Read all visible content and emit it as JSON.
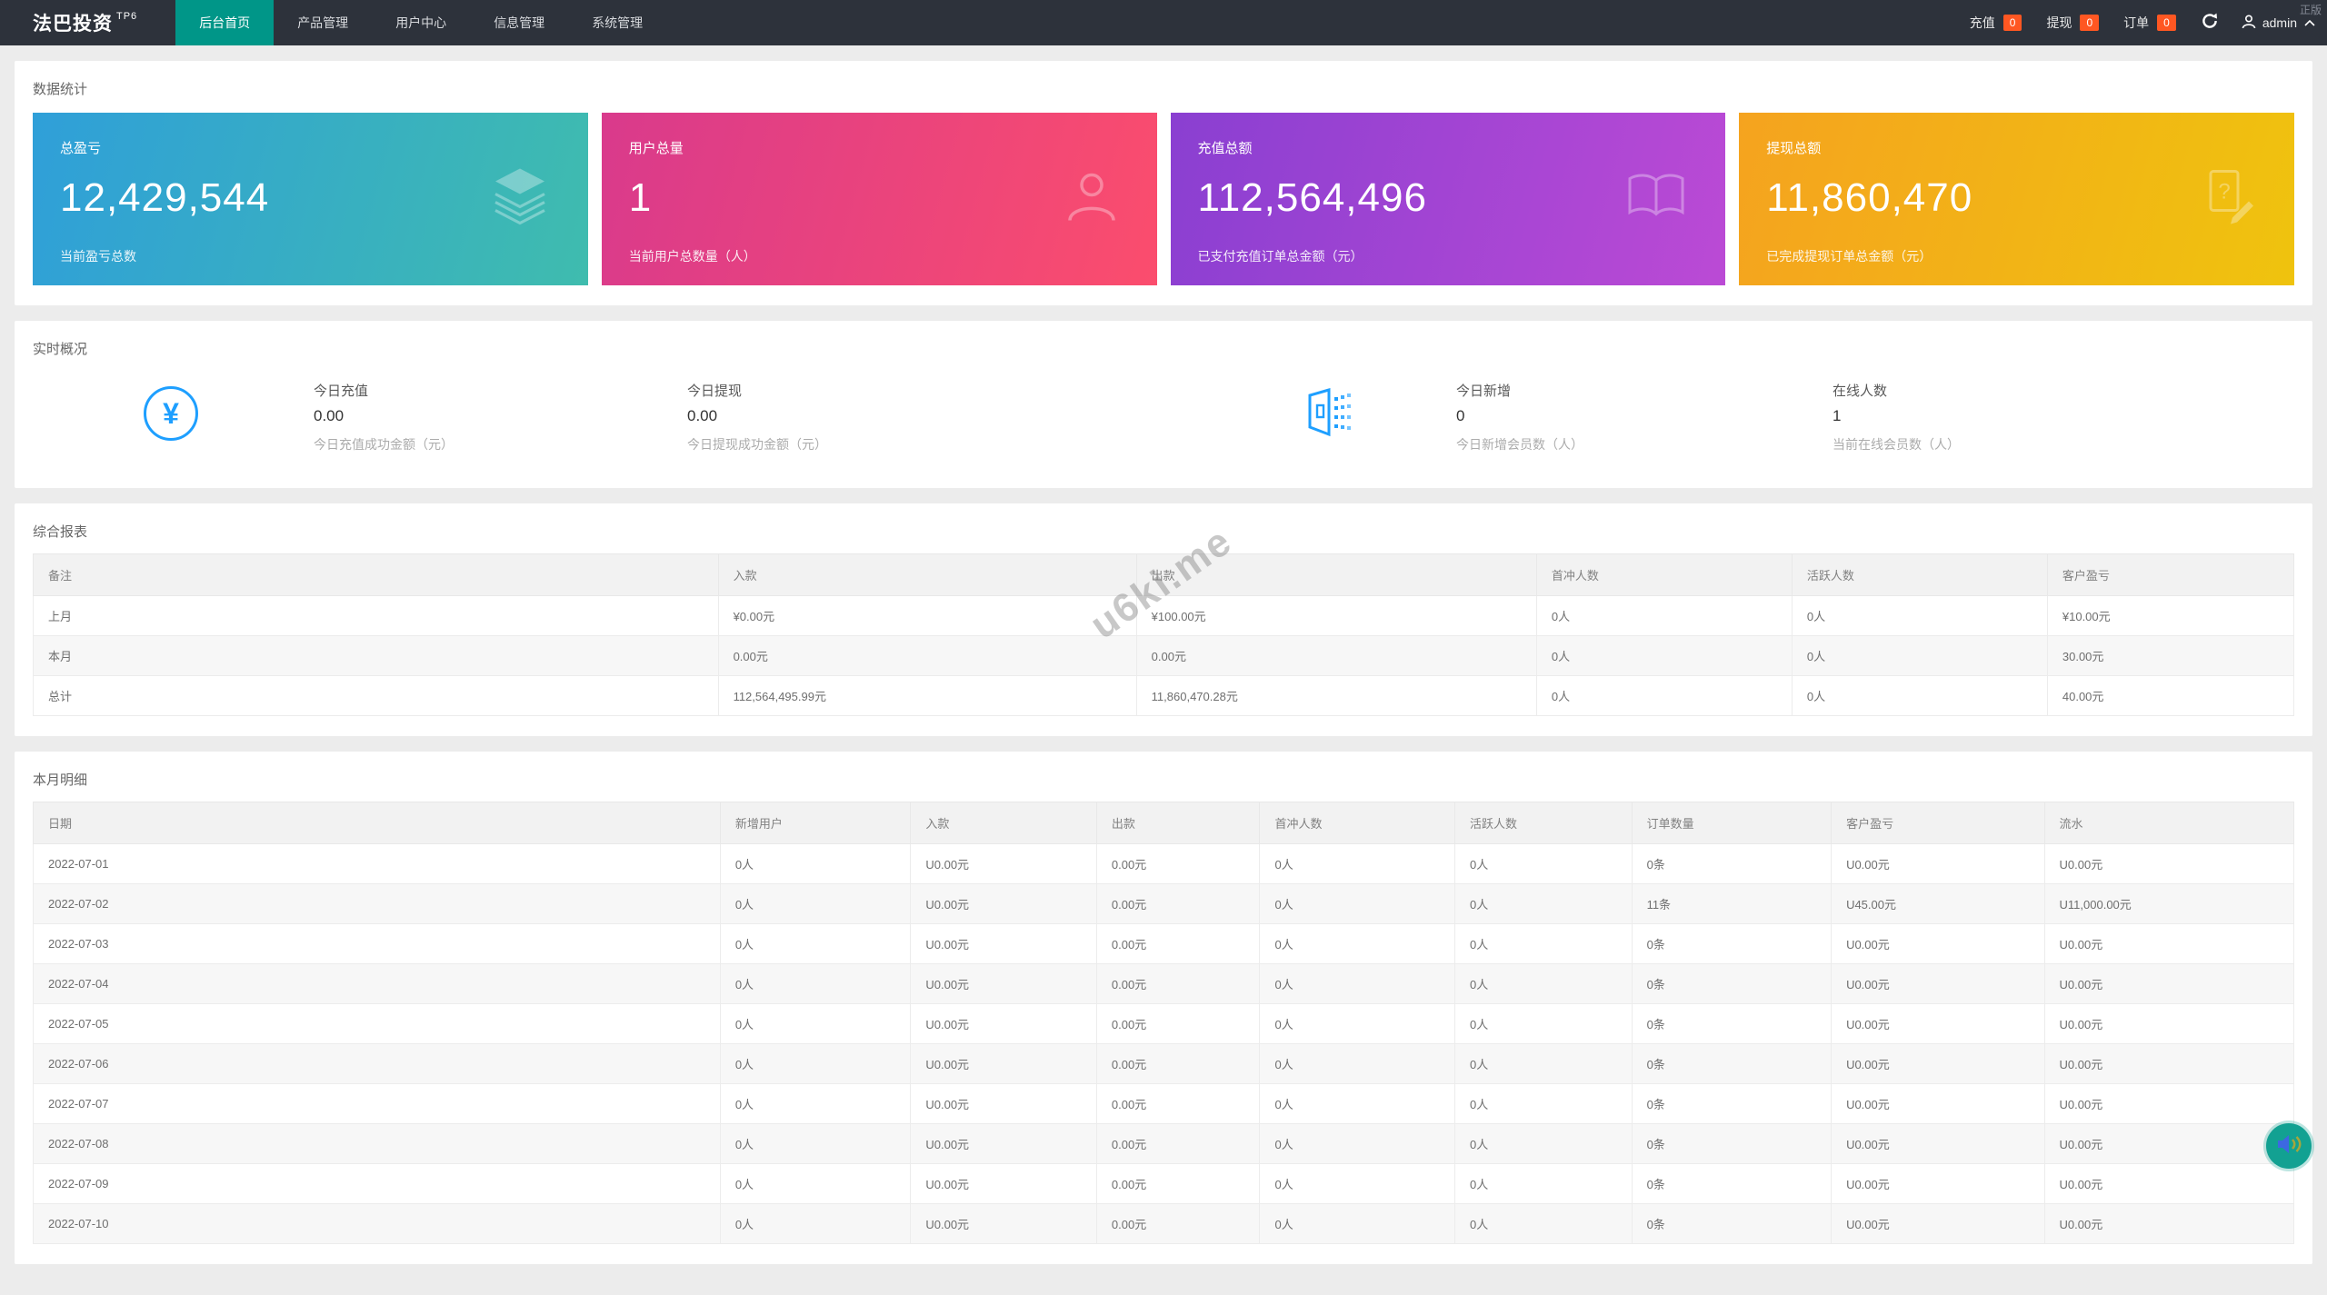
{
  "navbar": {
    "brand": "法巴投资",
    "brand_sup": "TP6",
    "menu": [
      {
        "label": "后台首页",
        "active": true
      },
      {
        "label": "产品管理",
        "active": false
      },
      {
        "label": "用户中心",
        "active": false
      },
      {
        "label": "信息管理",
        "active": false
      },
      {
        "label": "系统管理",
        "active": false
      }
    ],
    "quick": [
      {
        "label": "充值",
        "badge": "0"
      },
      {
        "label": "提现",
        "badge": "0"
      },
      {
        "label": "订单",
        "badge": "0"
      }
    ],
    "user": "admin",
    "corner_text": "正版"
  },
  "stats": {
    "section_title": "数据统计",
    "cards": [
      {
        "title": "总盈亏",
        "value": "12,429,544",
        "subtitle": "当前盈亏总数",
        "icon": "layers-icon",
        "gradient_from": "#2f9fd9",
        "gradient_to": "#3fbcae"
      },
      {
        "title": "用户总量",
        "value": "1",
        "subtitle": "当前用户总数量（人）",
        "icon": "person-icon",
        "gradient_from": "#d93a8c",
        "gradient_to": "#fb4d6d"
      },
      {
        "title": "充值总额",
        "value": "112,564,496",
        "subtitle": "已支付充值订单总金额（元）",
        "icon": "open-book-icon",
        "gradient_from": "#8a3fd1",
        "gradient_to": "#bb4ad5"
      },
      {
        "title": "提现总额",
        "value": "11,860,470",
        "subtitle": "已完成提现订单总金额（元）",
        "icon": "doc-question-icon",
        "gradient_from": "#f5a31f",
        "gradient_to": "#efc30e"
      }
    ]
  },
  "realtime": {
    "section_title": "实时概况",
    "items": [
      {
        "label": "今日充值",
        "value": "0.00",
        "desc": "今日充值成功金额（元）"
      },
      {
        "label": "今日提现",
        "value": "0.00",
        "desc": "今日提现成功金额（元）"
      },
      {
        "label": "今日新增",
        "value": "0",
        "desc": "今日新增会员数（人）"
      },
      {
        "label": "在线人数",
        "value": "1",
        "desc": "当前在线会员数（人）"
      }
    ]
  },
  "summary_report": {
    "section_title": "综合报表",
    "columns": [
      "备注",
      "入款",
      "出款",
      "首冲人数",
      "活跃人数",
      "客户盈亏"
    ],
    "rows": [
      [
        "上月",
        "¥0.00元",
        "¥100.00元",
        "0人",
        "0人",
        "¥10.00元"
      ],
      [
        "本月",
        "0.00元",
        "0.00元",
        "0人",
        "0人",
        "30.00元"
      ],
      [
        "总计",
        "112,564,495.99元",
        "11,860,470.28元",
        "0人",
        "0人",
        "40.00元"
      ]
    ]
  },
  "month_detail": {
    "section_title": "本月明细",
    "columns": [
      "日期",
      "新增用户",
      "入款",
      "出款",
      "首冲人数",
      "活跃人数",
      "订单数量",
      "客户盈亏",
      "流水"
    ],
    "rows": [
      [
        "2022-07-01",
        "0人",
        "U0.00元",
        "0.00元",
        "0人",
        "0人",
        "0条",
        "U0.00元",
        "U0.00元"
      ],
      [
        "2022-07-02",
        "0人",
        "U0.00元",
        "0.00元",
        "0人",
        "0人",
        "11条",
        "U45.00元",
        "U11,000.00元"
      ],
      [
        "2022-07-03",
        "0人",
        "U0.00元",
        "0.00元",
        "0人",
        "0人",
        "0条",
        "U0.00元",
        "U0.00元"
      ],
      [
        "2022-07-04",
        "0人",
        "U0.00元",
        "0.00元",
        "0人",
        "0人",
        "0条",
        "U0.00元",
        "U0.00元"
      ],
      [
        "2022-07-05",
        "0人",
        "U0.00元",
        "0.00元",
        "0人",
        "0人",
        "0条",
        "U0.00元",
        "U0.00元"
      ],
      [
        "2022-07-06",
        "0人",
        "U0.00元",
        "0.00元",
        "0人",
        "0人",
        "0条",
        "U0.00元",
        "U0.00元"
      ],
      [
        "2022-07-07",
        "0人",
        "U0.00元",
        "0.00元",
        "0人",
        "0人",
        "0条",
        "U0.00元",
        "U0.00元"
      ],
      [
        "2022-07-08",
        "0人",
        "U0.00元",
        "0.00元",
        "0人",
        "0人",
        "0条",
        "U0.00元",
        "U0.00元"
      ],
      [
        "2022-07-09",
        "0人",
        "U0.00元",
        "0.00元",
        "0人",
        "0人",
        "0条",
        "U0.00元",
        "U0.00元"
      ],
      [
        "2022-07-10",
        "0人",
        "U0.00元",
        "0.00元",
        "0人",
        "0人",
        "0条",
        "U0.00元",
        "U0.00元"
      ]
    ]
  },
  "watermark": "u6ki.me",
  "icons": {
    "refresh": "circular-arrow",
    "user": "person-silhouette",
    "caret": "chevron-up",
    "fab": "speaker-with-sound-waves",
    "realtime_money": "yen-in-circle",
    "realtime_members": "door-with-dot-grid"
  },
  "colors": {
    "navbar_bg": "#2d323b",
    "active_tab": "#009688",
    "badge": "#ff5722",
    "icon_blue": "#1E9FFF",
    "fab_teal": "#12a192",
    "page_bg": "#ececec"
  }
}
